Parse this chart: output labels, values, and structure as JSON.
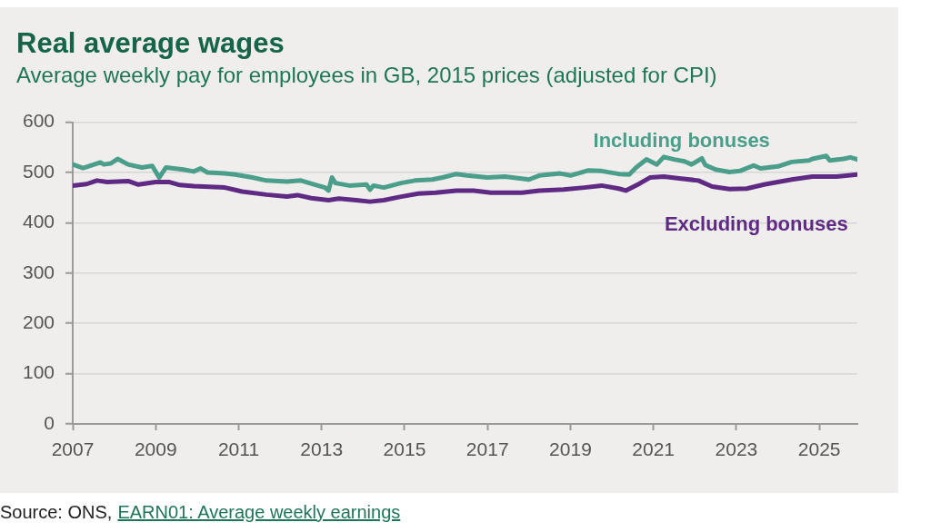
{
  "chart_data": {
    "type": "line",
    "title": "Real average wages",
    "subtitle": "Average weekly pay for employees in GB, 2015 prices (adjusted for CPI)",
    "annotations": [
      "Source: ONS,",
      "EARN01: Average weekly earnings"
    ],
    "xlim": [
      "2007-01",
      "2025-12"
    ],
    "xticks": [
      "2007",
      "2009",
      "2011",
      "2013",
      "2015",
      "2017",
      "2019",
      "2021",
      "2023",
      "2025"
    ],
    "ylim": [
      0,
      600
    ],
    "yticks": [
      0,
      100,
      200,
      300,
      400,
      500,
      600
    ],
    "grid": "y",
    "legend": false,
    "marker": "none",
    "line_style": "solid",
    "series": [
      {
        "name": "Including bonuses",
        "color": "#4a9e8a",
        "x": [
          "2007-01",
          "2007-04",
          "2007-09",
          "2007-10",
          "2007-12",
          "2008-02",
          "2008-05",
          "2008-09",
          "2008-12",
          "2009-02",
          "2009-04",
          "2009-09",
          "2009-12",
          "2010-02",
          "2010-04",
          "2010-09",
          "2010-12",
          "2011-05",
          "2011-09",
          "2012-03",
          "2012-07",
          "2012-11",
          "2013-02",
          "2013-03",
          "2013-04",
          "2013-05",
          "2013-09",
          "2014-02",
          "2014-03",
          "2014-04",
          "2014-07",
          "2014-12",
          "2015-04",
          "2015-09",
          "2015-12",
          "2016-04",
          "2016-07",
          "2017-01",
          "2017-06",
          "2018-01",
          "2018-04",
          "2018-10",
          "2019-01",
          "2019-06",
          "2019-10",
          "2020-03",
          "2020-06",
          "2020-08",
          "2020-11",
          "2021-02",
          "2021-04",
          "2021-07",
          "2021-10",
          "2021-12",
          "2022-03",
          "2022-04",
          "2022-07",
          "2022-11",
          "2023-02",
          "2023-06",
          "2023-08",
          "2024-01",
          "2024-05",
          "2024-10",
          "2024-11",
          "2025-03",
          "2025-04",
          "2025-08",
          "2025-10",
          "2025-12"
        ],
        "values": [
          516,
          509,
          520,
          516,
          518,
          527,
          516,
          510,
          513,
          490,
          510,
          506,
          502,
          508,
          500,
          498,
          496,
          490,
          484,
          482,
          484,
          476,
          470,
          464,
          490,
          479,
          474,
          476,
          466,
          474,
          470,
          479,
          484,
          486,
          490,
          497,
          494,
          490,
          492,
          486,
          494,
          498,
          494,
          504,
          503,
          497,
          496,
          510,
          526,
          516,
          531,
          526,
          522,
          516,
          528,
          515,
          506,
          501,
          503,
          514,
          508,
          512,
          521,
          524,
          527,
          533,
          524,
          527,
          530,
          526
        ]
      },
      {
        "name": "Excluding bonuses",
        "color": "#5e2a84",
        "x": [
          "2007-01",
          "2007-05",
          "2007-08",
          "2007-11",
          "2008-05",
          "2008-08",
          "2009-01",
          "2009-05",
          "2009-08",
          "2009-12",
          "2010-09",
          "2011-02",
          "2011-09",
          "2012-03",
          "2012-06",
          "2012-10",
          "2013-03",
          "2013-06",
          "2013-11",
          "2014-03",
          "2014-07",
          "2014-12",
          "2015-05",
          "2015-10",
          "2016-04",
          "2016-09",
          "2017-02",
          "2017-11",
          "2018-04",
          "2018-11",
          "2019-05",
          "2019-10",
          "2020-03",
          "2020-05",
          "2020-09",
          "2020-12",
          "2021-04",
          "2021-09",
          "2022-02",
          "2022-06",
          "2022-11",
          "2023-04",
          "2023-09",
          "2024-05",
          "2024-11",
          "2025-06",
          "2025-12"
        ],
        "values": [
          474,
          477,
          484,
          481,
          483,
          476,
          481,
          481,
          475,
          473,
          470,
          462,
          456,
          452,
          455,
          449,
          445,
          448,
          445,
          442,
          445,
          452,
          458,
          460,
          464,
          464,
          460,
          460,
          464,
          466,
          470,
          474,
          468,
          464,
          478,
          490,
          492,
          488,
          484,
          472,
          467,
          468,
          476,
          486,
          492,
          492,
          496
        ]
      }
    ]
  }
}
